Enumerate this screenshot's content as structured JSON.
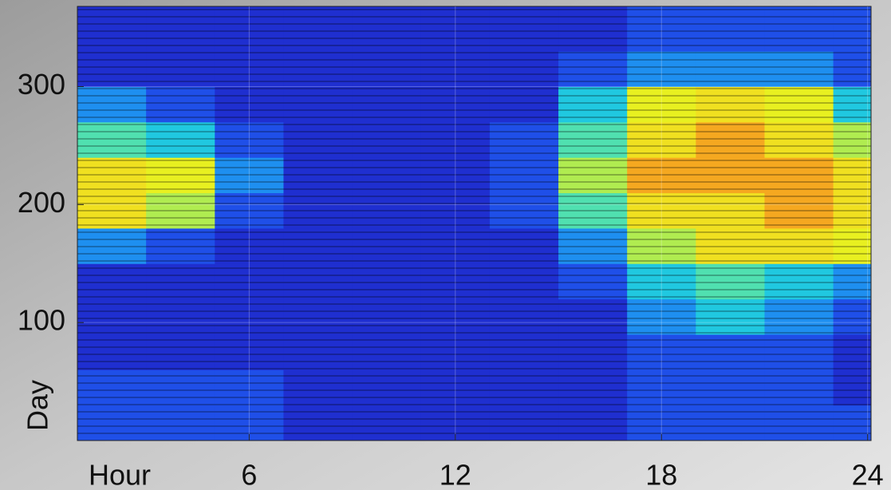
{
  "chart_data": {
    "type": "heatmap",
    "xlabel": "Hour",
    "ylabel": "Day",
    "x": [
      2,
      4,
      6,
      8,
      10,
      12,
      14,
      16,
      18,
      20,
      22,
      24
    ],
    "y": [
      15,
      45,
      75,
      105,
      135,
      165,
      195,
      225,
      255,
      285,
      315,
      345
    ],
    "z": [
      [
        2,
        2,
        2,
        1,
        1,
        1,
        1,
        1,
        2,
        2,
        2,
        2
      ],
      [
        2,
        2,
        2,
        1,
        1,
        1,
        1,
        1,
        2,
        2,
        2,
        1
      ],
      [
        1,
        1,
        1,
        1,
        1,
        1,
        1,
        1,
        2,
        2,
        2,
        1
      ],
      [
        1,
        1,
        1,
        1,
        1,
        1,
        1,
        1,
        3,
        4,
        3,
        2
      ],
      [
        1,
        1,
        1,
        1,
        1,
        1,
        1,
        2,
        4,
        5,
        4,
        3
      ],
      [
        3,
        2,
        1,
        1,
        1,
        1,
        1,
        3,
        6,
        8,
        8,
        7
      ],
      [
        8,
        6,
        2,
        1,
        1,
        1,
        2,
        5,
        8,
        8,
        9,
        8
      ],
      [
        8,
        7,
        3,
        1,
        1,
        1,
        2,
        6,
        9,
        9,
        9,
        8
      ],
      [
        5,
        4,
        2,
        1,
        1,
        1,
        2,
        5,
        8,
        9,
        8,
        6
      ],
      [
        3,
        2,
        1,
        1,
        1,
        1,
        1,
        4,
        7,
        8,
        7,
        4
      ],
      [
        1,
        1,
        1,
        1,
        1,
        1,
        1,
        2,
        3,
        3,
        3,
        2
      ],
      [
        1,
        1,
        1,
        1,
        1,
        1,
        1,
        1,
        2,
        2,
        2,
        2
      ]
    ],
    "zlim": [
      0,
      10
    ],
    "colormap": [
      "#1a1a8c",
      "#1f2fd0",
      "#1f4fe8",
      "#1e8ff0",
      "#20c8e0",
      "#50e0b0",
      "#b0ec50",
      "#e8f020",
      "#f0e020",
      "#f5a820",
      "#f07020"
    ],
    "xlim": [
      1,
      24.1
    ],
    "xticks": [
      6,
      12,
      18,
      24
    ],
    "ylim": [
      0,
      368
    ],
    "yticks": [
      100,
      200,
      300
    ],
    "grid": true
  }
}
